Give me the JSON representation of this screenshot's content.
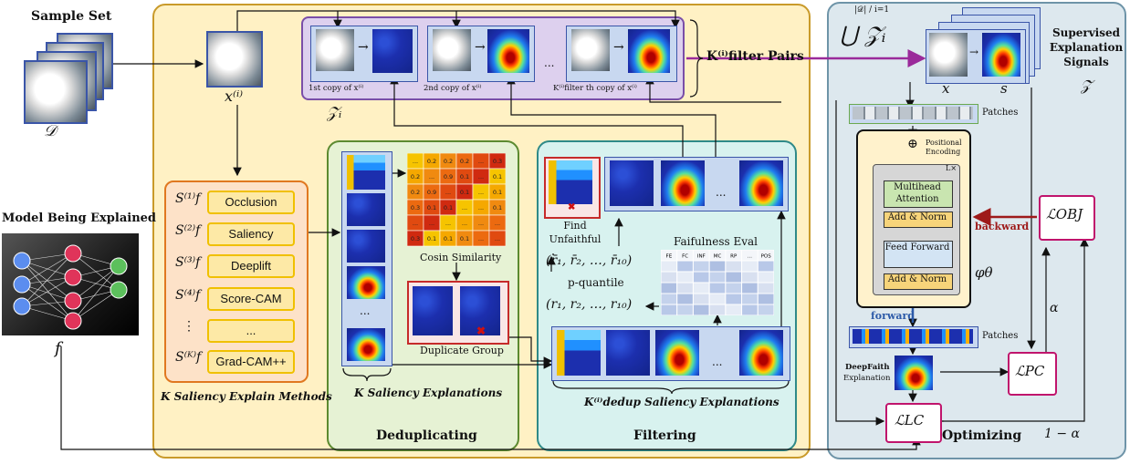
{
  "sample_set": {
    "title": "Sample Set",
    "symbol": "𝒟"
  },
  "model": {
    "title": "Model Being Explained",
    "symbol": "f"
  },
  "input": {
    "label": "x⁽ⁱ⁾",
    "z_label": "𝒵ᵢ"
  },
  "pairs": {
    "copy_labels": [
      "1st copy of x⁽ⁱ⁾",
      "2nd copy of x⁽ⁱ⁾",
      "K⁽ⁱ⁾filter th copy of x⁽ⁱ⁾"
    ],
    "ellipsis": "...",
    "label": "K⁽ⁱ⁾filter Pairs"
  },
  "methods": {
    "symbols": [
      "S⁽¹⁾f",
      "S⁽²⁾f",
      "S⁽³⁾f",
      "S⁽⁴⁾f",
      "⋮",
      "S⁽ᴷ⁾f"
    ],
    "names": [
      "Occlusion",
      "Saliency",
      "Deeplift",
      "Score-CAM",
      "...",
      "Grad-CAM++"
    ],
    "caption": "K Saliency Explain Methods"
  },
  "dedup": {
    "matrix_caption": "Cosin Similarity",
    "matrix_values": [
      [
        "...",
        "0.2",
        "0.2",
        "0.2",
        "...",
        "0.3"
      ],
      [
        "0.2",
        "...",
        "0.9",
        "0.1",
        "...",
        "0.1"
      ],
      [
        "0.2",
        "0.9",
        "...",
        "0.1",
        "...",
        "0.1"
      ],
      [
        "0.3",
        "0.1",
        "0.1",
        "...",
        "...",
        "0.1"
      ],
      [
        "...",
        "...",
        "...",
        "...",
        "...",
        "..."
      ],
      [
        "0.3",
        "0.1",
        "0.1",
        "0.1",
        "...",
        "..."
      ]
    ],
    "group_caption": "Duplicate Group",
    "explanations_caption": "K Saliency Explanations",
    "title": "Deduplicating",
    "ellipsis": "..."
  },
  "filtering": {
    "find_label": "Find Unfaithful",
    "eval_title": "Faifulness Eval",
    "eval_headers": [
      "FE",
      "FC",
      "INF",
      "MC",
      "RP",
      "...",
      "POS"
    ],
    "rbar": "(r̄₁, r̄₂, …, r̄₁₀)",
    "quantile": "p-quantile",
    "r": "(r₁, r₂, …, r₁₀)",
    "caption": "K⁽ⁱ⁾dedup Saliency Explanations",
    "title": "Filtering",
    "ellipsis": "..."
  },
  "optimizing": {
    "union": "⋃ 𝒵ᵢ",
    "union_limits": "|𝒟| / i=1",
    "signals": "Supervised Explanation Signals",
    "signals_symbol": "𝒵",
    "x": "x",
    "s": "s",
    "patches": "Patches",
    "positional": "Positional Encoding",
    "lx": "L×",
    "mha": "Multihead Attention",
    "addnorm": "Add & Norm",
    "ff": "Feed Forward",
    "phi": "φθ",
    "forward": "forward",
    "backward": "backward",
    "l_obj": "ℒOBJ",
    "alpha": "α",
    "deepfaith": "DeepFaith",
    "explanation": "Explanation",
    "l_pc": "ℒPC",
    "l_lc": "ℒLC",
    "one_minus_alpha": "1 − α",
    "title": "Optimizing"
  },
  "colors": {
    "main_bg": "#fff1c4",
    "main_border": "#c99a2a",
    "dedup_bg": "#e6f2d4",
    "dedup_border": "#5c8a30",
    "filter_bg": "#d8f2ef",
    "filter_border": "#2f8a88",
    "pairs_bg": "#ddd0ee",
    "pairs_border": "#7a4ea8",
    "opt_bg": "#dde8ee",
    "opt_border": "#6e94a8",
    "loss_border": "#c0146c",
    "backward": "#9e1a1a",
    "forward": "#2c5aa8"
  }
}
